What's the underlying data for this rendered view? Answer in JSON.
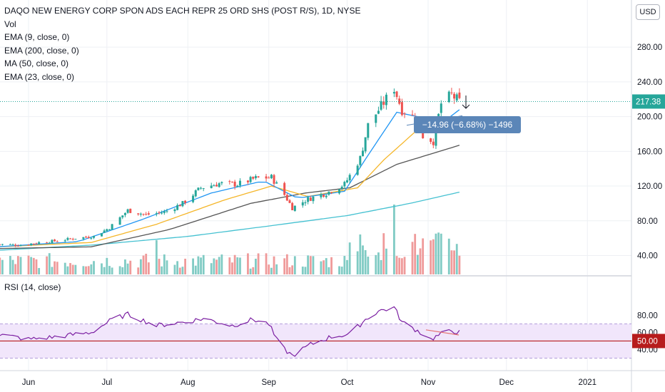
{
  "legend": {
    "title": "DAQO NEW ENERGY CORP SPON ADS EACH REPR 25 ORD SHS (POST R/S), 1D, NYSE",
    "studies": [
      "Vol",
      "EMA (9, close, 0)",
      "EMA (200, close, 0)",
      "MA (50, close, 0)",
      "EMA (23, close, 0)"
    ],
    "rsi": "RSI (14, close)"
  },
  "currency": "USD",
  "colors": {
    "up": "#26a69a",
    "down": "#ef5350",
    "vol_up": "#80cbc4",
    "vol_down": "#ef9a9a",
    "ema9": "#2196f3",
    "ema23": "#f5b629",
    "ma50": "#555555",
    "ema200": "#45c1d1",
    "rsi": "#7b1fa2",
    "rsi_band": "#f1e6fb",
    "price_line": "#26a69a",
    "measure_box": "#5b86b8",
    "level_50": "#b71c1c"
  },
  "chart_data": {
    "type": "candlestick",
    "price_axis": {
      "ticks": [
        40,
        80,
        120,
        160,
        200,
        240,
        280
      ],
      "tick_labels": [
        "40.00",
        "80.00",
        "120.00",
        "160.00",
        "200.00",
        "240.00",
        "280.00"
      ],
      "current": "217.38"
    },
    "rsi_axis": {
      "ticks": [
        40,
        60,
        80
      ],
      "tick_labels": [
        "40.00",
        "60.00",
        "80.00"
      ],
      "band": [
        30,
        70
      ],
      "level": 50,
      "level_label": "50.00"
    },
    "time_axis": {
      "labels": [
        "Jun",
        "Jul",
        "Aug",
        "Sep",
        "Oct",
        "Nov",
        "Dec",
        "2021"
      ]
    },
    "measure_label": "−14.96 (−6.68%) −1496",
    "start_date": "2020-05-20",
    "end_date": "2020-11-13",
    "ohlc_close_anchors": [
      [
        "2020-05-20",
        53
      ],
      [
        "2020-05-29",
        52
      ],
      [
        "2020-06-05",
        55
      ],
      [
        "2020-06-12",
        57
      ],
      [
        "2020-06-19",
        60
      ],
      [
        "2020-06-26",
        62
      ],
      [
        "2020-07-02",
        72
      ],
      [
        "2020-07-09",
        92
      ],
      [
        "2020-07-16",
        87
      ],
      [
        "2020-07-23",
        90
      ],
      [
        "2020-07-30",
        100
      ],
      [
        "2020-08-06",
        118
      ],
      [
        "2020-08-13",
        123
      ],
      [
        "2020-08-20",
        122
      ],
      [
        "2020-08-27",
        129
      ],
      [
        "2020-09-02",
        130
      ],
      [
        "2020-09-07",
        110
      ],
      [
        "2020-09-10",
        95
      ],
      [
        "2020-09-16",
        105
      ],
      [
        "2020-09-23",
        112
      ],
      [
        "2020-09-30",
        122
      ],
      [
        "2020-10-06",
        152
      ],
      [
        "2020-10-09",
        190
      ],
      [
        "2020-10-14",
        212
      ],
      [
        "2020-10-19",
        233
      ],
      [
        "2020-10-22",
        208
      ],
      [
        "2020-10-27",
        198
      ],
      [
        "2020-10-30",
        178
      ],
      [
        "2020-11-03",
        172
      ],
      [
        "2020-11-06",
        215
      ],
      [
        "2020-11-10",
        225
      ],
      [
        "2020-11-13",
        217
      ]
    ],
    "volume_range": [
      15,
      100
    ],
    "rsi_anchors": [
      [
        "2020-05-20",
        58
      ],
      [
        "2020-06-01",
        52
      ],
      [
        "2020-06-12",
        55
      ],
      [
        "2020-06-25",
        60
      ],
      [
        "2020-07-03",
        75
      ],
      [
        "2020-07-09",
        81
      ],
      [
        "2020-07-20",
        68
      ],
      [
        "2020-07-30",
        72
      ],
      [
        "2020-08-07",
        76
      ],
      [
        "2020-08-18",
        68
      ],
      [
        "2020-08-26",
        75
      ],
      [
        "2020-09-01",
        70
      ],
      [
        "2020-09-05",
        45
      ],
      [
        "2020-09-10",
        33
      ],
      [
        "2020-09-17",
        46
      ],
      [
        "2020-09-25",
        55
      ],
      [
        "2020-10-02",
        58
      ],
      [
        "2020-10-08",
        75
      ],
      [
        "2020-10-13",
        85
      ],
      [
        "2020-10-19",
        89
      ],
      [
        "2020-10-22",
        72
      ],
      [
        "2020-10-28",
        62
      ],
      [
        "2020-11-02",
        52
      ],
      [
        "2020-11-06",
        58
      ],
      [
        "2020-11-10",
        62
      ],
      [
        "2020-11-13",
        60
      ]
    ],
    "ema_anchors": {
      "ema9": [
        [
          "2020-05-20",
          50
        ],
        [
          "2020-06-20",
          56
        ],
        [
          "2020-07-15",
          82
        ],
        [
          "2020-08-10",
          112
        ],
        [
          "2020-08-30",
          126
        ],
        [
          "2020-09-12",
          106
        ],
        [
          "2020-09-30",
          114
        ],
        [
          "2020-10-10",
          160
        ],
        [
          "2020-10-20",
          205
        ],
        [
          "2020-10-28",
          200
        ],
        [
          "2020-11-03",
          185
        ],
        [
          "2020-11-13",
          208
        ]
      ],
      "ema23": [
        [
          "2020-05-20",
          50
        ],
        [
          "2020-06-25",
          55
        ],
        [
          "2020-07-20",
          76
        ],
        [
          "2020-08-15",
          104
        ],
        [
          "2020-09-02",
          120
        ],
        [
          "2020-09-16",
          108
        ],
        [
          "2020-10-05",
          118
        ],
        [
          "2020-10-15",
          150
        ],
        [
          "2020-10-28",
          185
        ],
        [
          "2020-11-13",
          200
        ]
      ],
      "ma50": [
        [
          "2020-05-20",
          48
        ],
        [
          "2020-06-25",
          50
        ],
        [
          "2020-07-25",
          70
        ],
        [
          "2020-08-25",
          100
        ],
        [
          "2020-09-15",
          112
        ],
        [
          "2020-10-02",
          118
        ],
        [
          "2020-10-20",
          145
        ],
        [
          "2020-11-13",
          167
        ]
      ],
      "ema200": [
        [
          "2020-05-20",
          46
        ],
        [
          "2020-06-25",
          52
        ],
        [
          "2020-08-01",
          62
        ],
        [
          "2020-09-01",
          74
        ],
        [
          "2020-10-01",
          86
        ],
        [
          "2020-10-25",
          100
        ],
        [
          "2020-11-13",
          113
        ]
      ]
    }
  }
}
